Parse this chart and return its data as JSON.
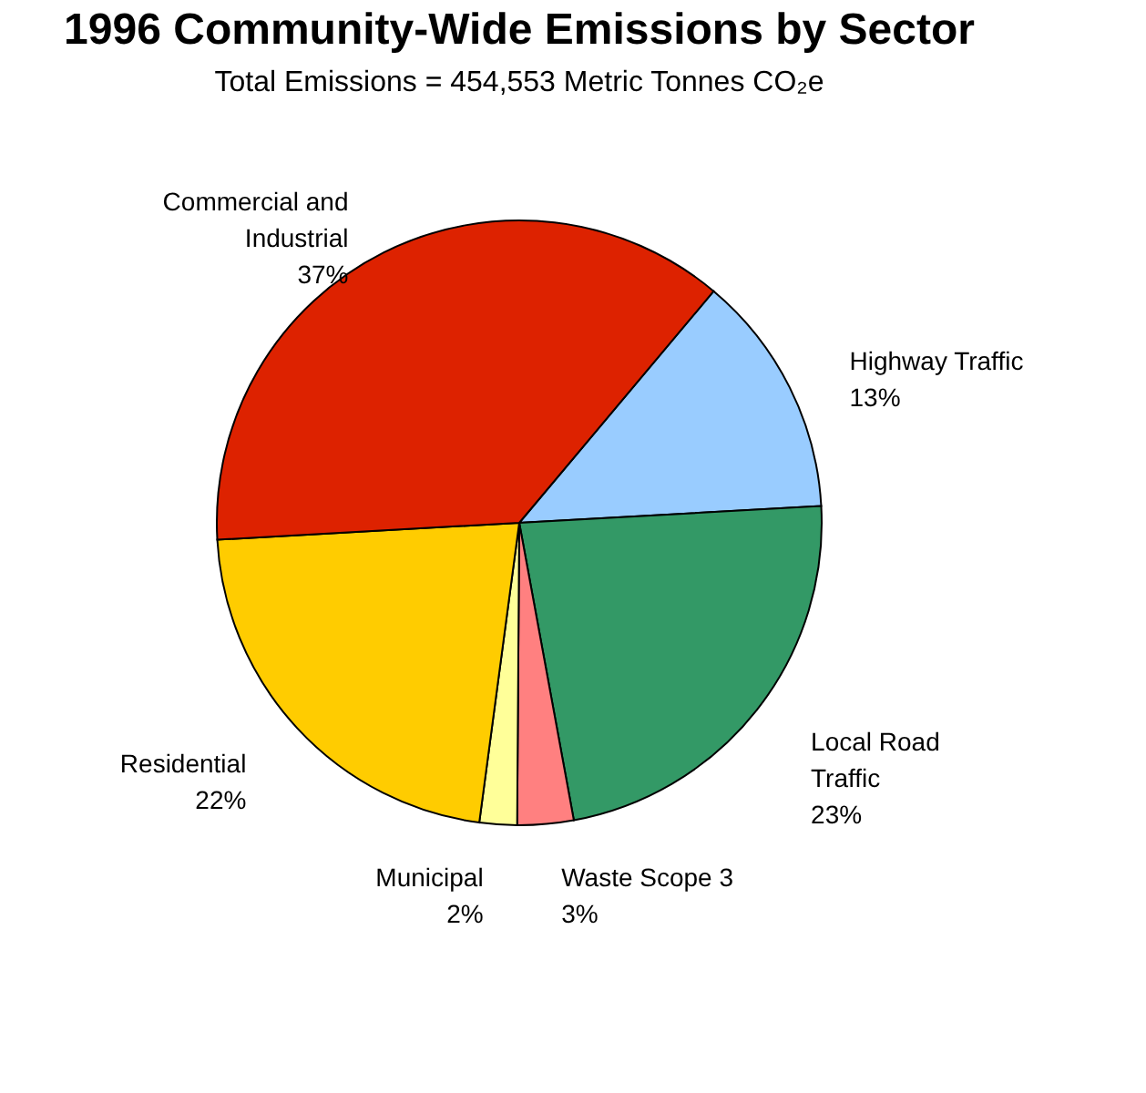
{
  "chart_data": {
    "type": "pie",
    "title": "1996 Community-Wide Emissions by Sector",
    "subtitle": "Total Emissions = 454,553 Metric Tonnes CO₂e",
    "categories": [
      "Highway Traffic",
      "Local Road Traffic",
      "Waste Scope 3",
      "Municipal",
      "Residential",
      "Commercial and Industrial"
    ],
    "values": [
      13,
      23,
      3,
      2,
      22,
      37
    ],
    "colors": [
      "#99ccff",
      "#339966",
      "#ff8080",
      "#ffff99",
      "#ffcc00",
      "#dd2200"
    ],
    "value_labels": [
      "13%",
      "23%",
      "3%",
      "2%",
      "22%",
      "37%"
    ],
    "legend": false
  }
}
